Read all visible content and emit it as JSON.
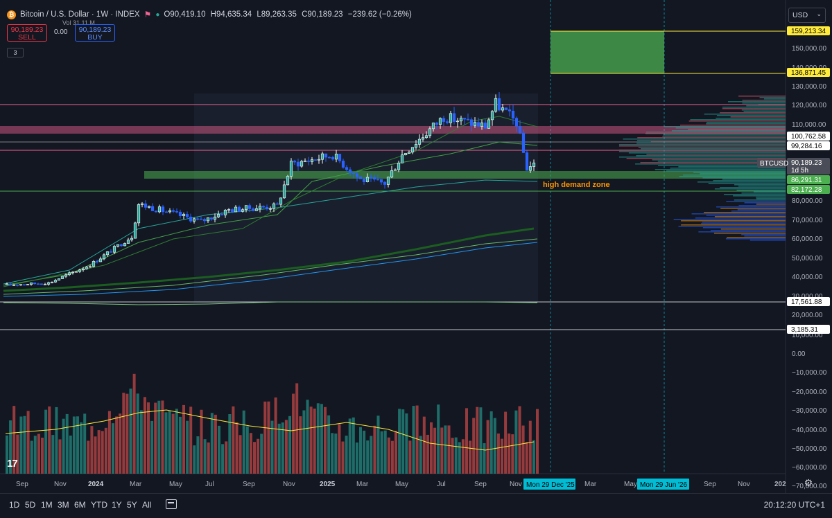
{
  "header": {
    "symbol": "Bitcoin / U.S. Dollar · 1W · INDEX",
    "open": "O90,419.10",
    "high": "H94,635.34",
    "low": "L89,263.35",
    "close": "C90,189.23",
    "change": "−239.62 (−0.26%)",
    "vol": "Vol 31.11 M"
  },
  "trade": {
    "sell_price": "90,189.23",
    "sell_label": "SELL",
    "spread": "0.00",
    "buy_price": "90,189.23",
    "buy_label": "BUY",
    "layers": "3"
  },
  "currency": "USD",
  "annotations": {
    "demand_zone": "high demand zone"
  },
  "price_axis": {
    "ticks": [
      "150,000.00",
      "140,000.00",
      "130,000.00",
      "120,000.00",
      "110,000.00",
      "80,000.00",
      "70,000.00",
      "60,000.00",
      "50,000.00",
      "40,000.00",
      "30,000.00",
      "20,000.00",
      "10,000.00",
      "0.00",
      "−10,000.00",
      "−20,000.00",
      "−30,000.00",
      "−40,000.00",
      "−50,000.00",
      "−60,000.00",
      "−70,000.00"
    ],
    "labels": [
      {
        "text": "159,213.34",
        "style": "yellow"
      },
      {
        "text": "136,871.45",
        "style": "yellow"
      },
      {
        "text": "100,762.58",
        "style": "white"
      },
      {
        "text": "99,284.16",
        "style": "white"
      },
      {
        "text": "90,189.23",
        "style": "grey"
      },
      {
        "text": "1d 5h",
        "style": "grey"
      },
      {
        "text": "86,291.31",
        "style": "green"
      },
      {
        "text": "82,172.28",
        "style": "green"
      },
      {
        "text": "17,561.88",
        "style": "white"
      },
      {
        "text": "3,185.31",
        "style": "white"
      }
    ],
    "symbol_tag": "BTCUSD"
  },
  "time_axis": {
    "labels": [
      "Sep",
      "Nov",
      "2024",
      "Mar",
      "May",
      "Jul",
      "Sep",
      "Nov",
      "2025",
      "Mar",
      "May",
      "Jul",
      "Sep",
      "Nov",
      "Mar",
      "May",
      "Sep",
      "Nov",
      "202"
    ],
    "highlighted": [
      "Mon 29 Dec '25",
      "Mon 29 Jun '26"
    ]
  },
  "toolbar": {
    "timeframes": [
      "1D",
      "5D",
      "1M",
      "3M",
      "6M",
      "YTD",
      "1Y",
      "5Y",
      "All"
    ],
    "clock": "20:12:20 UTC+1"
  },
  "colors": {
    "background": "#131722",
    "bull": "#26a69a",
    "bear": "#ef5350",
    "candle_up": "#ffffff",
    "candle_down": "#2962ff",
    "zone_green": "#4caf50",
    "zone_red": "#f23645",
    "label_yellow": "#ffeb3b",
    "accent_cyan": "#00bcd4"
  }
}
